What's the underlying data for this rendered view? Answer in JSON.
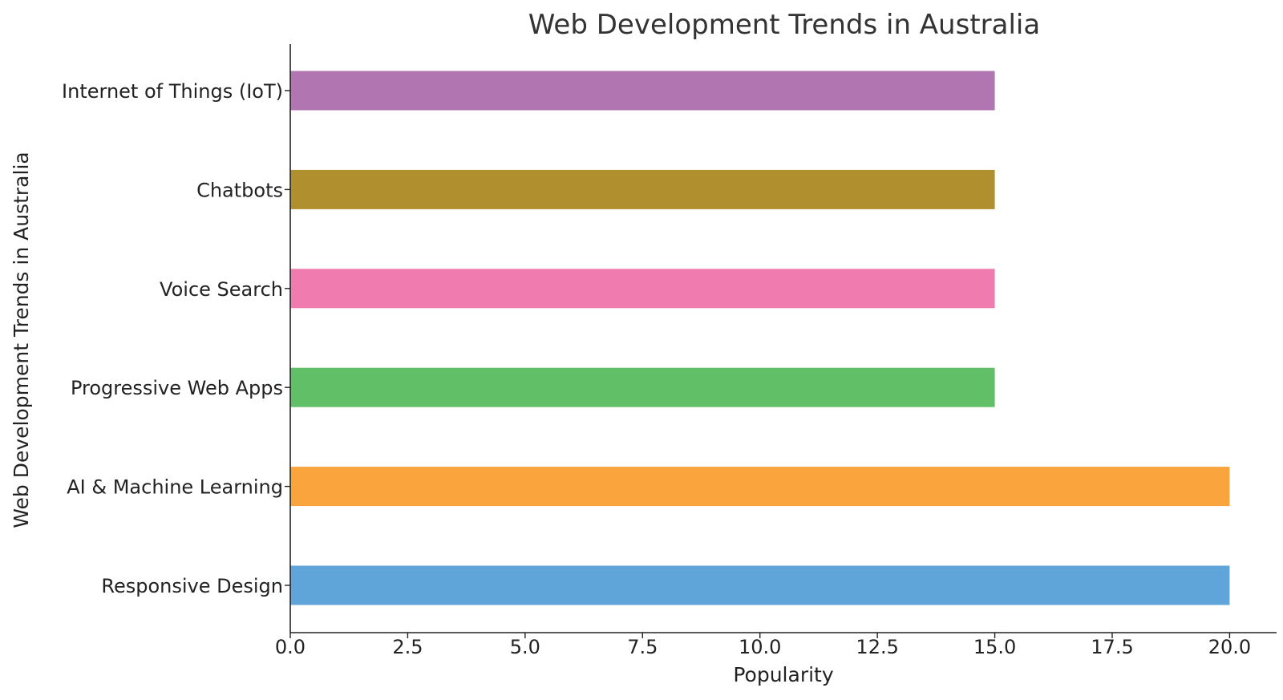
{
  "chart_data": {
    "type": "bar",
    "orientation": "horizontal",
    "title": "Web Development Trends in Australia",
    "xlabel": "Popularity",
    "ylabel": "Web Development Trends in Australia",
    "categories": [
      "Responsive Design",
      "AI & Machine Learning",
      "Progressive Web Apps",
      "Voice Search",
      "Chatbots",
      "Internet of Things (IoT)"
    ],
    "values": [
      20,
      20,
      15,
      15,
      15,
      15
    ],
    "colors": [
      "#5fa5da",
      "#f9a43d",
      "#61bf67",
      "#f07caf",
      "#b08f2f",
      "#b176b1"
    ],
    "xlim": [
      0,
      21
    ],
    "xticks": [
      "0.0",
      "2.5",
      "5.0",
      "7.5",
      "10.0",
      "12.5",
      "15.0",
      "17.5",
      "20.0"
    ],
    "grid": false,
    "legend": "none"
  }
}
